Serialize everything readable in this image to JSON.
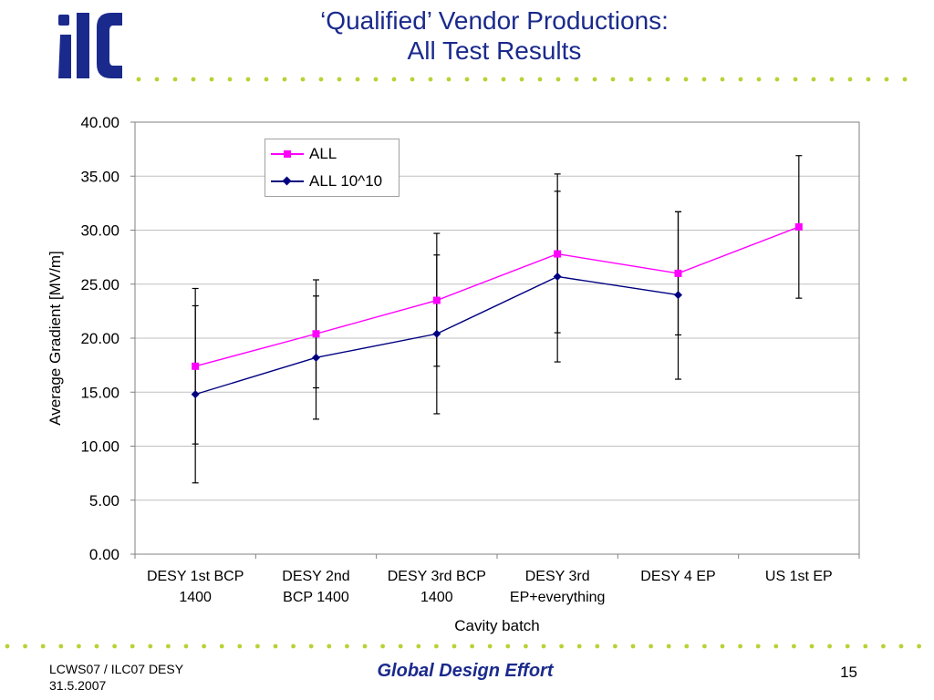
{
  "slide": {
    "title": "‘Qualified’ Vendor  Productions:",
    "subtitle": "All Test Results",
    "footer_left_line1": "LCWS07 / ILC07 DESY",
    "footer_left_line2": "31.5.2007",
    "footer_center": "Global Design Effort",
    "page_number": "15"
  },
  "colors": {
    "title": "#1a2a8c",
    "dots": "#b5d334",
    "logo": "#1a2a8c",
    "series_all": "#ff00ff",
    "series_all_1010": "#000080",
    "grid": "#c0c0c0",
    "error_bar": "#000000"
  },
  "chart_data": {
    "type": "line",
    "xlabel": "Cavity batch",
    "ylabel": "Average Gradient [MV/m]",
    "ylim": [
      0,
      40
    ],
    "yticks": [
      "0.00",
      "5.00",
      "10.00",
      "15.00",
      "20.00",
      "25.00",
      "30.00",
      "35.00",
      "40.00"
    ],
    "grid": true,
    "legend_position": "top-left",
    "categories": [
      [
        "DESY 1st BCP",
        "1400"
      ],
      [
        "DESY 2nd",
        "BCP 1400"
      ],
      [
        "DESY 3rd BCP",
        "1400"
      ],
      [
        "DESY 3rd",
        "EP+everything"
      ],
      [
        "DESY 4 EP"
      ],
      [
        "US 1st EP"
      ]
    ],
    "series": [
      {
        "name": "ALL",
        "marker": "square",
        "values": [
          17.4,
          20.4,
          23.5,
          27.8,
          26.0,
          30.3
        ],
        "err_low": [
          10.2,
          15.4,
          17.4,
          20.5,
          20.3,
          23.7
        ],
        "err_high": [
          24.6,
          25.4,
          29.7,
          35.2,
          31.7,
          36.9
        ]
      },
      {
        "name": "ALL 10^10",
        "marker": "diamond",
        "values": [
          14.8,
          18.2,
          20.4,
          25.7,
          24.0,
          null
        ],
        "err_low": [
          6.6,
          12.5,
          13.0,
          17.8,
          16.2,
          null
        ],
        "err_high": [
          23.0,
          23.9,
          27.7,
          33.6,
          31.7,
          null
        ]
      }
    ]
  }
}
